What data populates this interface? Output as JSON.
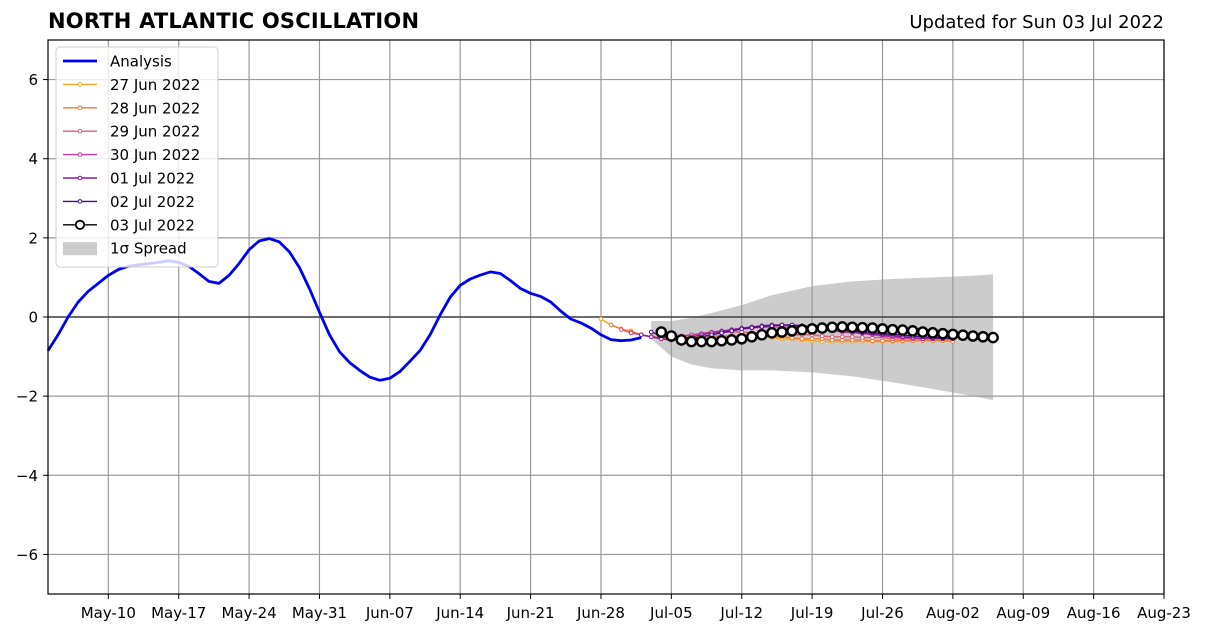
{
  "header": {
    "title": "NORTH ATLANTIC OSCILLATION",
    "updated": "Updated for Sun 03 Jul 2022"
  },
  "chart_data": {
    "type": "line",
    "title": "NORTH ATLANTIC OSCILLATION",
    "subtitle": "Updated for Sun 03 Jul 2022",
    "xlabel": "",
    "ylabel": "",
    "xlim": [
      "2022-05-04",
      "2022-08-23"
    ],
    "ylim": [
      -7,
      7
    ],
    "grid": true,
    "legend_position": "top-left",
    "x_ticks": [
      "2022-05-10",
      "2022-05-17",
      "2022-05-24",
      "2022-05-31",
      "2022-06-07",
      "2022-06-14",
      "2022-06-21",
      "2022-06-28",
      "2022-07-05",
      "2022-07-12",
      "2022-07-19",
      "2022-07-26",
      "2022-08-02",
      "2022-08-09",
      "2022-08-16",
      "2022-08-23"
    ],
    "x_tick_labels": [
      "May-10",
      "May-17",
      "May-24",
      "May-31",
      "Jun-07",
      "Jun-14",
      "Jun-21",
      "Jun-28",
      "Jul-05",
      "Jul-12",
      "Jul-19",
      "Jul-26",
      "Aug-02",
      "Aug-09",
      "Aug-16",
      "Aug-23"
    ],
    "y_ticks": [
      -6,
      -4,
      -2,
      0,
      2,
      4,
      6
    ],
    "y_tick_labels": [
      "−6",
      "−4",
      "−2",
      "0",
      "2",
      "4",
      "6"
    ],
    "analysis": {
      "name": "Analysis",
      "color": "#0000ee",
      "points": [
        [
          "2022-05-04",
          -0.85
        ],
        [
          "2022-05-05",
          -0.45
        ],
        [
          "2022-05-06",
          0.0
        ],
        [
          "2022-05-07",
          0.38
        ],
        [
          "2022-05-08",
          0.65
        ],
        [
          "2022-05-09",
          0.85
        ],
        [
          "2022-05-10",
          1.05
        ],
        [
          "2022-05-11",
          1.2
        ],
        [
          "2022-05-12",
          1.28
        ],
        [
          "2022-05-13",
          1.32
        ],
        [
          "2022-05-14",
          1.35
        ],
        [
          "2022-05-15",
          1.38
        ],
        [
          "2022-05-16",
          1.42
        ],
        [
          "2022-05-17",
          1.38
        ],
        [
          "2022-05-18",
          1.28
        ],
        [
          "2022-05-19",
          1.1
        ],
        [
          "2022-05-20",
          0.9
        ],
        [
          "2022-05-21",
          0.85
        ],
        [
          "2022-05-22",
          1.05
        ],
        [
          "2022-05-23",
          1.35
        ],
        [
          "2022-05-24",
          1.7
        ],
        [
          "2022-05-25",
          1.92
        ],
        [
          "2022-05-26",
          1.98
        ],
        [
          "2022-05-27",
          1.9
        ],
        [
          "2022-05-28",
          1.65
        ],
        [
          "2022-05-29",
          1.25
        ],
        [
          "2022-05-30",
          0.72
        ],
        [
          "2022-05-31",
          0.12
        ],
        [
          "2022-06-01",
          -0.45
        ],
        [
          "2022-06-02",
          -0.88
        ],
        [
          "2022-06-03",
          -1.15
        ],
        [
          "2022-06-04",
          -1.35
        ],
        [
          "2022-06-05",
          -1.52
        ],
        [
          "2022-06-06",
          -1.6
        ],
        [
          "2022-06-07",
          -1.55
        ],
        [
          "2022-06-08",
          -1.38
        ],
        [
          "2022-06-09",
          -1.12
        ],
        [
          "2022-06-10",
          -0.85
        ],
        [
          "2022-06-11",
          -0.45
        ],
        [
          "2022-06-12",
          0.05
        ],
        [
          "2022-06-13",
          0.5
        ],
        [
          "2022-06-14",
          0.8
        ],
        [
          "2022-06-15",
          0.96
        ],
        [
          "2022-06-16",
          1.06
        ],
        [
          "2022-06-17",
          1.14
        ],
        [
          "2022-06-18",
          1.1
        ],
        [
          "2022-06-19",
          0.92
        ],
        [
          "2022-06-20",
          0.72
        ],
        [
          "2022-06-21",
          0.6
        ],
        [
          "2022-06-22",
          0.52
        ],
        [
          "2022-06-23",
          0.38
        ],
        [
          "2022-06-24",
          0.15
        ],
        [
          "2022-06-25",
          -0.05
        ],
        [
          "2022-06-26",
          -0.15
        ],
        [
          "2022-06-27",
          -0.28
        ],
        [
          "2022-06-28",
          -0.45
        ],
        [
          "2022-06-29",
          -0.57
        ],
        [
          "2022-06-30",
          -0.6
        ],
        [
          "2022-07-01",
          -0.58
        ],
        [
          "2022-07-02",
          -0.52
        ]
      ]
    },
    "spread": {
      "name": "1σ Spread",
      "color": "#cccccc",
      "x": [
        "2022-07-03",
        "2022-07-05",
        "2022-07-07",
        "2022-07-09",
        "2022-07-12",
        "2022-07-15",
        "2022-07-19",
        "2022-07-23",
        "2022-07-27",
        "2022-07-31",
        "2022-08-04",
        "2022-08-06"
      ],
      "upper": [
        -0.1,
        -0.1,
        -0.02,
        0.1,
        0.3,
        0.55,
        0.78,
        0.9,
        0.96,
        1.0,
        1.04,
        1.08
      ],
      "lower": [
        -0.55,
        -1.0,
        -1.2,
        -1.3,
        -1.35,
        -1.35,
        -1.4,
        -1.5,
        -1.65,
        -1.82,
        -2.0,
        -2.1
      ]
    },
    "forecasts": [
      {
        "name": "27 Jun 2022",
        "color": "#f5a623",
        "start": "2022-06-28",
        "values": [
          -0.05,
          -0.2,
          -0.3,
          -0.35,
          -0.45,
          -0.5,
          -0.55,
          -0.5,
          -0.5,
          -0.5,
          -0.52,
          -0.55,
          -0.55,
          -0.55,
          -0.55,
          -0.5,
          -0.5,
          -0.52,
          -0.55,
          -0.55,
          -0.58,
          -0.6,
          -0.62,
          -0.62,
          -0.62,
          -0.62,
          -0.62,
          -0.62,
          -0.62,
          -0.62,
          -0.62,
          -0.6,
          -0.6,
          -0.6,
          -0.6,
          -0.6
        ]
      },
      {
        "name": "28 Jun 2022",
        "color": "#ef7d3c",
        "start": "2022-06-29",
        "values": [
          -0.2,
          -0.3,
          -0.38,
          -0.45,
          -0.5,
          -0.55,
          -0.55,
          -0.52,
          -0.5,
          -0.48,
          -0.48,
          -0.48,
          -0.48,
          -0.5,
          -0.5,
          -0.5,
          -0.5,
          -0.5,
          -0.52,
          -0.55,
          -0.55,
          -0.55,
          -0.58,
          -0.58,
          -0.58,
          -0.58,
          -0.6,
          -0.6,
          -0.6,
          -0.6,
          -0.6,
          -0.6,
          -0.6,
          -0.6,
          -0.62
        ]
      },
      {
        "name": "29 Jun 2022",
        "color": "#e05c77",
        "start": "2022-06-30",
        "values": [
          -0.32,
          -0.4,
          -0.45,
          -0.5,
          -0.52,
          -0.5,
          -0.48,
          -0.45,
          -0.42,
          -0.4,
          -0.38,
          -0.38,
          -0.38,
          -0.4,
          -0.4,
          -0.42,
          -0.42,
          -0.45,
          -0.45,
          -0.45,
          -0.48,
          -0.5,
          -0.5,
          -0.5,
          -0.52,
          -0.52,
          -0.52,
          -0.55,
          -0.55,
          -0.55,
          -0.55,
          -0.55,
          -0.55,
          -0.55
        ]
      },
      {
        "name": "30 Jun 2022",
        "color": "#c2399b",
        "start": "2022-07-01",
        "values": [
          -0.4,
          -0.45,
          -0.5,
          -0.52,
          -0.5,
          -0.48,
          -0.45,
          -0.42,
          -0.38,
          -0.35,
          -0.32,
          -0.3,
          -0.28,
          -0.26,
          -0.25,
          -0.25,
          -0.26,
          -0.28,
          -0.3,
          -0.32,
          -0.35,
          -0.38,
          -0.4,
          -0.42,
          -0.45,
          -0.48,
          -0.5,
          -0.52,
          -0.55,
          -0.55,
          -0.55,
          -0.55,
          -0.55
        ]
      },
      {
        "name": "01 Jul 2022",
        "color": "#8e1aa6",
        "start": "2022-07-02",
        "values": [
          -0.45,
          -0.5,
          -0.55,
          -0.58,
          -0.55,
          -0.5,
          -0.45,
          -0.4,
          -0.36,
          -0.32,
          -0.28,
          -0.25,
          -0.22,
          -0.2,
          -0.2,
          -0.22,
          -0.25,
          -0.28,
          -0.3,
          -0.32,
          -0.35,
          -0.38,
          -0.4,
          -0.42,
          -0.45,
          -0.48,
          -0.5,
          -0.52,
          -0.55,
          -0.55,
          -0.55,
          -0.55
        ]
      },
      {
        "name": "02 Jul 2022",
        "color": "#4b0a8c",
        "start": "2022-07-03",
        "values": [
          -0.38,
          -0.48,
          -0.55,
          -0.58,
          -0.55,
          -0.5,
          -0.45,
          -0.4,
          -0.35,
          -0.3,
          -0.27,
          -0.24,
          -0.22,
          -0.2,
          -0.2,
          -0.22,
          -0.25,
          -0.28,
          -0.3,
          -0.32,
          -0.35,
          -0.38,
          -0.4,
          -0.42,
          -0.44,
          -0.46,
          -0.48,
          -0.5,
          -0.52,
          -0.53,
          -0.54
        ]
      },
      {
        "name": "03 Jul 2022",
        "color": "#000000",
        "start": "2022-07-04",
        "values": [
          -0.38,
          -0.48,
          -0.58,
          -0.62,
          -0.62,
          -0.62,
          -0.6,
          -0.58,
          -0.55,
          -0.5,
          -0.45,
          -0.4,
          -0.38,
          -0.35,
          -0.32,
          -0.3,
          -0.28,
          -0.26,
          -0.25,
          -0.26,
          -0.27,
          -0.28,
          -0.3,
          -0.32,
          -0.33,
          -0.35,
          -0.38,
          -0.4,
          -0.42,
          -0.44,
          -0.46,
          -0.48,
          -0.5,
          -0.52
        ]
      }
    ],
    "legend": [
      "Analysis",
      "27 Jun 2022",
      "28 Jun 2022",
      "29 Jun 2022",
      "30 Jun 2022",
      "01 Jul 2022",
      "02 Jul 2022",
      "03 Jul 2022",
      "1σ Spread"
    ]
  }
}
